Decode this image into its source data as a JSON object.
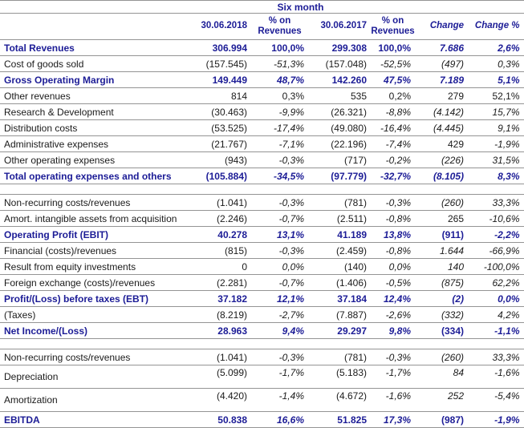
{
  "colors": {
    "navy": "#1c1c96",
    "text": "#1a1a1a",
    "line": "#949494",
    "background": "#ffffff"
  },
  "table": {
    "title": "Six month",
    "columns": [
      "30.06.2018",
      "% on Revenues",
      "30.06.2017",
      "% on Revenues",
      "Change",
      "Change %"
    ],
    "rows": [
      {
        "label": "Total Revenues",
        "bold": true,
        "cells": [
          "306.994",
          "100,0%",
          "299.308",
          "100,0%",
          "7.686",
          "2,6%"
        ],
        "italic": [
          false,
          false,
          false,
          false,
          true,
          true
        ]
      },
      {
        "label": "Cost of goods sold",
        "bold": false,
        "cells": [
          "(157.545)",
          "-51,3%",
          "(157.048)",
          "-52,5%",
          "(497)",
          "0,3%"
        ],
        "italic": [
          false,
          true,
          false,
          true,
          true,
          true
        ]
      },
      {
        "label": "Gross Operating Margin",
        "bold": true,
        "cells": [
          "149.449",
          "48,7%",
          "142.260",
          "47,5%",
          "7.189",
          "5,1%"
        ],
        "italic": [
          false,
          true,
          false,
          true,
          true,
          true
        ]
      },
      {
        "label": "Other revenues",
        "bold": false,
        "cells": [
          "814",
          "0,3%",
          "535",
          "0,2%",
          "279",
          "52,1%"
        ],
        "italic": [
          false,
          false,
          false,
          false,
          false,
          false
        ]
      },
      {
        "label": "Research & Development",
        "bold": false,
        "cells": [
          "(30.463)",
          "-9,9%",
          "(26.321)",
          "-8,8%",
          "(4.142)",
          "15,7%"
        ],
        "italic": [
          false,
          true,
          false,
          true,
          true,
          true
        ]
      },
      {
        "label": "Distribution costs",
        "bold": false,
        "cells": [
          "(53.525)",
          "-17,4%",
          "(49.080)",
          "-16,4%",
          "(4.445)",
          "9,1%"
        ],
        "italic": [
          false,
          true,
          false,
          true,
          true,
          true
        ]
      },
      {
        "label": "Administrative expenses",
        "bold": false,
        "cells": [
          "(21.767)",
          "-7,1%",
          "(22.196)",
          "-7,4%",
          "429",
          "-1,9%"
        ],
        "italic": [
          false,
          true,
          false,
          true,
          false,
          true
        ]
      },
      {
        "label": "Other operating expenses",
        "bold": false,
        "cells": [
          "(943)",
          "-0,3%",
          "(717)",
          "-0,2%",
          "(226)",
          "31,5%"
        ],
        "italic": [
          false,
          true,
          false,
          true,
          true,
          true
        ]
      },
      {
        "label": "Total operating expenses and others",
        "bold": true,
        "cells": [
          "(105.884)",
          "-34,5%",
          "(97.779)",
          "-32,7%",
          "(8.105)",
          "8,3%"
        ],
        "italic": [
          false,
          true,
          false,
          true,
          true,
          true
        ]
      },
      {
        "gap": true
      },
      {
        "label": "Non-recurring costs/revenues",
        "bold": false,
        "cells": [
          "(1.041)",
          "-0,3%",
          "(781)",
          "-0,3%",
          "(260)",
          "33,3%"
        ],
        "italic": [
          false,
          true,
          false,
          true,
          true,
          true
        ]
      },
      {
        "label": "Amort. intangible assets from acquisition",
        "bold": false,
        "cells": [
          "(2.246)",
          "-0,7%",
          "(2.511)",
          "-0,8%",
          "265",
          "-10,6%"
        ],
        "italic": [
          false,
          true,
          false,
          true,
          false,
          true
        ]
      },
      {
        "label": "Operating Profit (EBIT)",
        "bold": true,
        "cells": [
          "40.278",
          "13,1%",
          "41.189",
          "13,8%",
          "(911)",
          "-2,2%"
        ],
        "italic": [
          false,
          true,
          false,
          true,
          false,
          true
        ]
      },
      {
        "label": "Financial (costs)/revenues",
        "bold": false,
        "cells": [
          "(815)",
          "-0,3%",
          "(2.459)",
          "-0,8%",
          "1.644",
          "-66,9%"
        ],
        "italic": [
          false,
          true,
          false,
          true,
          true,
          true
        ]
      },
      {
        "label": "Result from equity investments",
        "bold": false,
        "cells": [
          "0",
          "0,0%",
          "(140)",
          "0,0%",
          "140",
          "-100,0%"
        ],
        "italic": [
          false,
          true,
          false,
          true,
          true,
          true
        ]
      },
      {
        "label": "Foreign exchange (costs)/revenues",
        "bold": false,
        "cells": [
          "(2.281)",
          "-0,7%",
          "(1.406)",
          "-0,5%",
          "(875)",
          "62,2%"
        ],
        "italic": [
          false,
          true,
          false,
          true,
          true,
          true
        ]
      },
      {
        "label": "Profit/(Loss) before taxes (EBT)",
        "bold": true,
        "cells": [
          "37.182",
          "12,1%",
          "37.184",
          "12,4%",
          "(2)",
          "0,0%"
        ],
        "italic": [
          false,
          true,
          false,
          true,
          true,
          true
        ]
      },
      {
        "label": "(Taxes)",
        "bold": false,
        "cells": [
          "(8.219)",
          "-2,7%",
          "(7.887)",
          "-2,6%",
          "(332)",
          "4,2%"
        ],
        "italic": [
          false,
          true,
          false,
          true,
          true,
          true
        ]
      },
      {
        "label": "Net Income/(Loss)",
        "bold": true,
        "cells": [
          "28.963",
          "9,4%",
          "29.297",
          "9,8%",
          "(334)",
          "-1,1%"
        ],
        "italic": [
          false,
          true,
          false,
          true,
          false,
          true
        ]
      },
      {
        "gap": true
      },
      {
        "label": "Non-recurring costs/revenues",
        "bold": false,
        "cells": [
          "(1.041)",
          "-0,3%",
          "(781)",
          "-0,3%",
          "(260)",
          "33,3%"
        ],
        "italic": [
          false,
          true,
          false,
          true,
          true,
          true
        ]
      },
      {
        "label": "Depreciation",
        "bold": false,
        "tall": true,
        "cells": [
          "(5.099)",
          "-1,7%",
          "(5.183)",
          "-1,7%",
          "84",
          "-1,6%"
        ],
        "italic": [
          false,
          true,
          false,
          true,
          true,
          true
        ]
      },
      {
        "label": "Amortization",
        "bold": false,
        "tall": true,
        "cells": [
          "(4.420)",
          "-1,4%",
          "(4.672)",
          "-1,6%",
          "252",
          "-5,4%"
        ],
        "italic": [
          false,
          true,
          false,
          true,
          true,
          true
        ]
      },
      {
        "label": "EBITDA",
        "bold": true,
        "cells": [
          "50.838",
          "16,6%",
          "51.825",
          "17,3%",
          "(987)",
          "-1,9%"
        ],
        "italic": [
          false,
          true,
          false,
          true,
          false,
          true
        ]
      }
    ]
  }
}
